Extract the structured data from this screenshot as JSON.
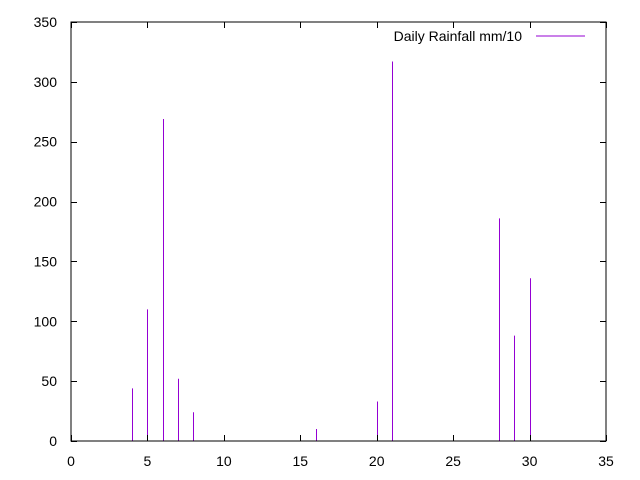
{
  "chart_data": {
    "type": "bar",
    "style": "impulses",
    "series": [
      {
        "name": "Daily Rainfall mm/10",
        "color": "#9400d3",
        "x": [
          3,
          4,
          5,
          6,
          7,
          8,
          10,
          15,
          16,
          20,
          21,
          22,
          25,
          28,
          29,
          30
        ],
        "values": [
          0,
          44,
          110,
          269,
          52,
          24,
          0,
          0,
          10,
          33,
          317,
          0,
          0,
          186,
          88,
          136
        ]
      }
    ],
    "xlim": [
      0,
      35
    ],
    "ylim": [
      0,
      350
    ],
    "xticks": [
      0,
      5,
      10,
      15,
      20,
      25,
      30,
      35
    ],
    "yticks": [
      0,
      50,
      100,
      150,
      200,
      250,
      300,
      350
    ],
    "grid": false,
    "legend_position": "top-right",
    "title": "",
    "xlabel": "",
    "ylabel": ""
  }
}
